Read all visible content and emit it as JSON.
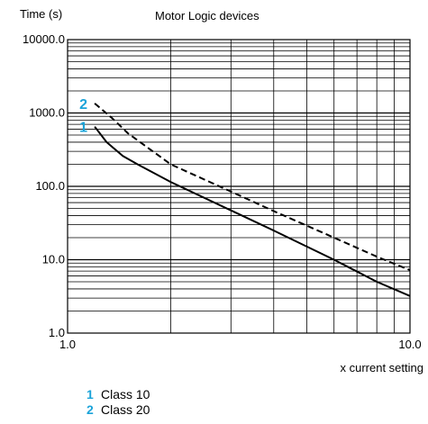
{
  "chart_data": {
    "type": "line",
    "title": "Motor Logic devices",
    "ylabel": "Time (s)",
    "xlabel": "x current setting",
    "x_scale": "log",
    "y_scale": "log",
    "xlim": [
      1.0,
      10.0
    ],
    "ylim": [
      1.0,
      10000.0
    ],
    "x_ticks": [
      "1.0",
      "10.0"
    ],
    "y_ticks": [
      "10000.0",
      "1000.0",
      "100.0",
      "10.0",
      "1.0"
    ],
    "grid": true,
    "series": [
      {
        "name": "Class 10",
        "marker_label": "1",
        "style": "solid",
        "color": "#000000",
        "points": [
          [
            1.2,
            650
          ],
          [
            1.3,
            400
          ],
          [
            1.45,
            260
          ],
          [
            1.6,
            200
          ],
          [
            2.0,
            115
          ],
          [
            3.0,
            47
          ],
          [
            4.0,
            25
          ],
          [
            6.0,
            10
          ],
          [
            8.0,
            5
          ],
          [
            10.0,
            3.2
          ]
        ]
      },
      {
        "name": "Class 20",
        "marker_label": "2",
        "style": "dashed",
        "color": "#000000",
        "points": [
          [
            1.2,
            1350
          ],
          [
            1.35,
            850
          ],
          [
            1.5,
            530
          ],
          [
            2.0,
            200
          ],
          [
            3.0,
            85
          ],
          [
            4.0,
            46
          ],
          [
            6.0,
            20
          ],
          [
            8.0,
            11
          ],
          [
            10.0,
            7.2
          ]
        ]
      }
    ],
    "marker_color": "#1aa3d9"
  },
  "legend": [
    {
      "num": "1",
      "label": "Class 10"
    },
    {
      "num": "2",
      "label": "Class 20"
    }
  ]
}
